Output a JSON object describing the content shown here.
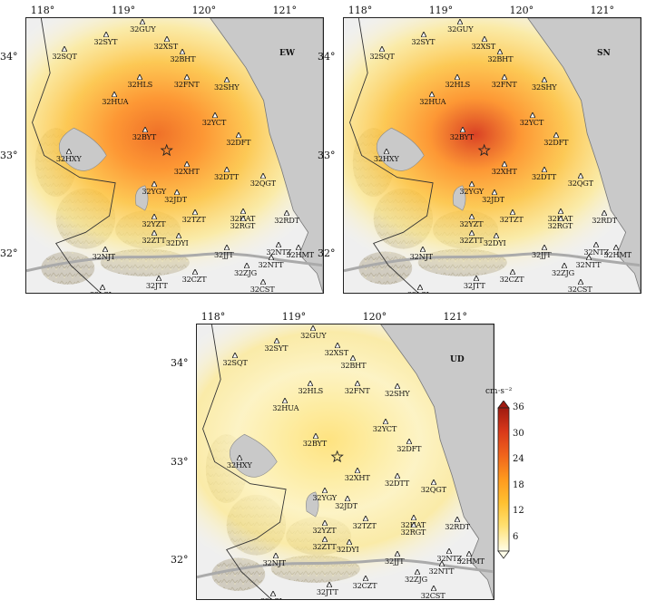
{
  "panels": [
    {
      "id": "ew",
      "component": "EW",
      "intensity": 0.78
    },
    {
      "id": "sn",
      "component": "SN",
      "intensity": 0.92
    },
    {
      "id": "ud",
      "component": "UD",
      "intensity": 0.34
    }
  ],
  "lon_labels": [
    "118°",
    "119°",
    "120°",
    "121°"
  ],
  "lat_labels": [
    "34°",
    "33°",
    "32°"
  ],
  "stations": [
    {
      "name": "32GUY",
      "lon": 119.25,
      "lat": 34.35
    },
    {
      "name": "32SYT",
      "lon": 118.8,
      "lat": 34.22
    },
    {
      "name": "32XST",
      "lon": 119.55,
      "lat": 34.18
    },
    {
      "name": "32SQT",
      "lon": 118.28,
      "lat": 34.08
    },
    {
      "name": "32BHT",
      "lon": 119.75,
      "lat": 34.05
    },
    {
      "name": "32HLS",
      "lon": 119.22,
      "lat": 33.79
    },
    {
      "name": "32FNT",
      "lon": 119.8,
      "lat": 33.79
    },
    {
      "name": "32SHY",
      "lon": 120.3,
      "lat": 33.76
    },
    {
      "name": "32HUA",
      "lon": 118.9,
      "lat": 33.61
    },
    {
      "name": "32YCT",
      "lon": 120.15,
      "lat": 33.4
    },
    {
      "name": "32BYT",
      "lon": 119.28,
      "lat": 33.25
    },
    {
      "name": "32DFT",
      "lon": 120.45,
      "lat": 33.2
    },
    {
      "name": "32HXY",
      "lon": 118.33,
      "lat": 33.03
    },
    {
      "name": "32XHT",
      "lon": 119.8,
      "lat": 32.9
    },
    {
      "name": "32DTT",
      "lon": 120.3,
      "lat": 32.85
    },
    {
      "name": "32QGT",
      "lon": 120.75,
      "lat": 32.78
    },
    {
      "name": "32YGY",
      "lon": 119.4,
      "lat": 32.7
    },
    {
      "name": "32JDT",
      "lon": 119.68,
      "lat": 32.62
    },
    {
      "name": "32HAT",
      "lon": 120.5,
      "lat": 32.42
    },
    {
      "name": "32YZT",
      "lon": 119.4,
      "lat": 32.37
    },
    {
      "name": "32TZT",
      "lon": 119.9,
      "lat": 32.41
    },
    {
      "name": "32RGT",
      "lon": 120.5,
      "lat": 32.35
    },
    {
      "name": "32RDT",
      "lon": 121.05,
      "lat": 32.4
    },
    {
      "name": "32ZTT",
      "lon": 119.4,
      "lat": 32.2
    },
    {
      "name": "32DYI",
      "lon": 119.7,
      "lat": 32.17
    },
    {
      "name": "32NJT",
      "lon": 118.78,
      "lat": 32.03
    },
    {
      "name": "32JJT",
      "lon": 120.3,
      "lat": 32.05
    },
    {
      "name": "32NTZ",
      "lon": 120.95,
      "lat": 32.08
    },
    {
      "name": "32HMT",
      "lon": 121.2,
      "lat": 32.05
    },
    {
      "name": "32NTT",
      "lon": 120.85,
      "lat": 31.95
    },
    {
      "name": "32ZJG",
      "lon": 120.55,
      "lat": 31.87
    },
    {
      "name": "32JTT",
      "lon": 119.45,
      "lat": 31.74
    },
    {
      "name": "32CZT",
      "lon": 119.9,
      "lat": 31.8
    },
    {
      "name": "32LSI",
      "lon": 118.75,
      "lat": 31.65
    },
    {
      "name": "32CST",
      "lon": 120.75,
      "lat": 31.7
    }
  ],
  "epicenter": {
    "lon": 119.55,
    "lat": 33.05
  },
  "legend": {
    "unit": "cm·s⁻²",
    "ticks": [
      "36",
      "30",
      "24",
      "18",
      "12",
      "6"
    ],
    "colors": [
      "#fffde8",
      "#ffe070",
      "#ffc030",
      "#ff9a1e",
      "#f0641c",
      "#d8381a",
      "#a01a10"
    ]
  }
}
